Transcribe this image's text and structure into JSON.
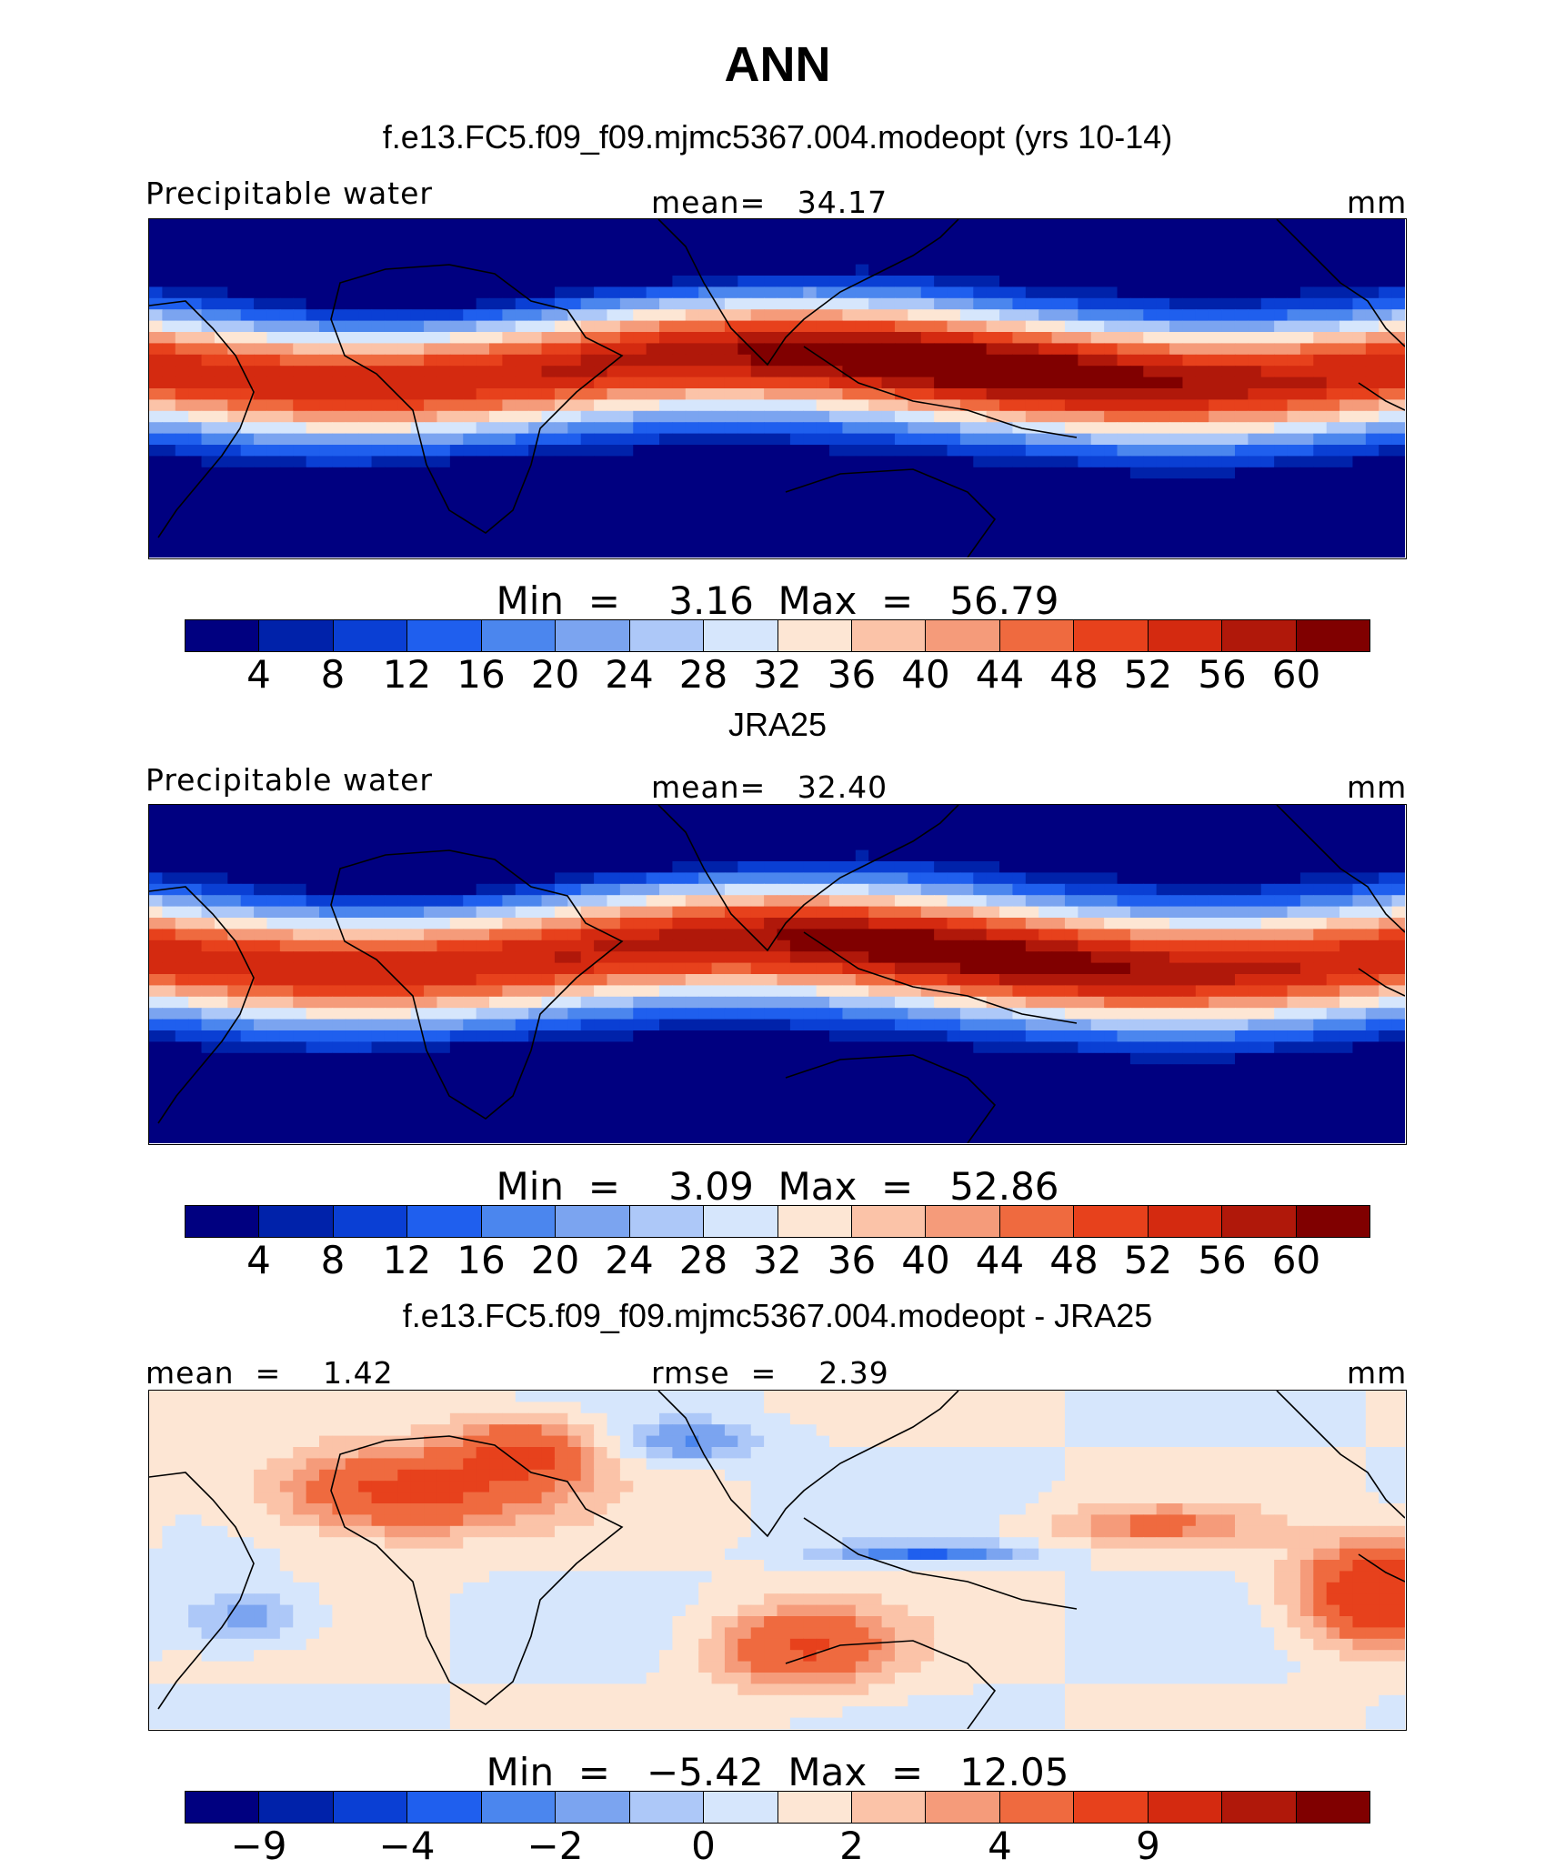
{
  "title": "ANN",
  "colors": {
    "abs": [
      "#000080",
      "#0022aa",
      "#0a3fd4",
      "#1f5fee",
      "#4b86ee",
      "#7ba4f0",
      "#adc8f8",
      "#d6e6fc",
      "#fde6d4",
      "#fbc3a8",
      "#f59b7a",
      "#ef6a3f",
      "#e7411c",
      "#d42a10",
      "#b0180a",
      "#800000"
    ],
    "diff": [
      "#000080",
      "#0022aa",
      "#0a3fd4",
      "#1f5fee",
      "#4b86ee",
      "#7ba4f0",
      "#adc8f8",
      "#d6e6fc",
      "#fde6d4",
      "#fbc3a8",
      "#f59b7a",
      "#ef6a3f",
      "#e7411c",
      "#d42a10",
      "#b0180a",
      "#800000"
    ]
  },
  "panels": [
    {
      "title": "f.e13.FC5.f09_f09.mjmc5367.004.modeopt (yrs 10-14)",
      "variable": "Precipitable water",
      "stat": "mean=   34.17",
      "units": "mm",
      "minmax": "Min  =    3.16  Max  =   56.79",
      "ticks": [
        "4",
        "8",
        "12",
        "16",
        "20",
        "24",
        "28",
        "32",
        "36",
        "40",
        "44",
        "48",
        "52",
        "56",
        "60"
      ],
      "colorbar": "abs",
      "field": "model"
    },
    {
      "title": "JRA25",
      "variable": "Precipitable water",
      "stat": "mean=   32.40",
      "units": "mm",
      "minmax": "Min  =    3.09  Max  =   52.86",
      "ticks": [
        "4",
        "8",
        "12",
        "16",
        "20",
        "24",
        "28",
        "32",
        "36",
        "40",
        "44",
        "48",
        "52",
        "56",
        "60"
      ],
      "colorbar": "abs",
      "field": "obs"
    },
    {
      "title": "f.e13.FC5.f09_f09.mjmc5367.004.modeopt - JRA25",
      "variable": "mean  =    1.42",
      "stat": "rmse  =    2.39",
      "units": "mm",
      "minmax": "Min  =   −5.42  Max  =   12.05",
      "ticks": [
        "−9",
        "",
        "−4",
        "",
        "−2",
        "",
        "0",
        "",
        "2",
        "",
        "4",
        "",
        "9",
        "",
        ""
      ],
      "colorbar": "diff",
      "field": "diff"
    }
  ]
}
